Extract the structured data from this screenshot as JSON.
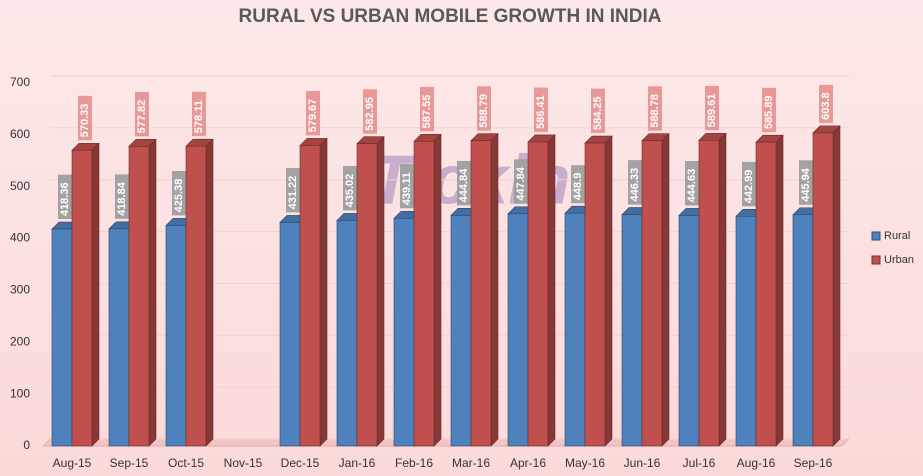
{
  "chart_data": {
    "type": "bar",
    "title": "RURAL VS URBAN MOBILE GROWTH IN INDIA",
    "watermark": "Tickin",
    "categories": [
      "Aug-15",
      "Sep-15",
      "Oct-15",
      "Nov-15",
      "Dec-15",
      "Jan-16",
      "Feb-16",
      "Mar-16",
      "Apr-16",
      "May-16",
      "Jun-16",
      "Jul-16",
      "Aug-16",
      "Sep-16"
    ],
    "series": [
      {
        "name": "Rural",
        "color": "#4f81bd",
        "values": [
          418.36,
          418.84,
          425.38,
          null,
          431.22,
          435.02,
          439.11,
          444.84,
          447.84,
          448.9,
          446.33,
          444.63,
          442.99,
          445.94
        ]
      },
      {
        "name": "Urban",
        "color": "#c0504d",
        "values": [
          570.33,
          577.82,
          578.11,
          null,
          579.67,
          582.95,
          587.55,
          588.79,
          586.41,
          584.25,
          588.78,
          589.61,
          585.89,
          603.8
        ]
      }
    ],
    "ylim": [
      0,
      700
    ],
    "yticks": [
      0,
      100,
      200,
      300,
      400,
      500,
      600,
      700
    ],
    "grid": true,
    "legend": "right"
  }
}
